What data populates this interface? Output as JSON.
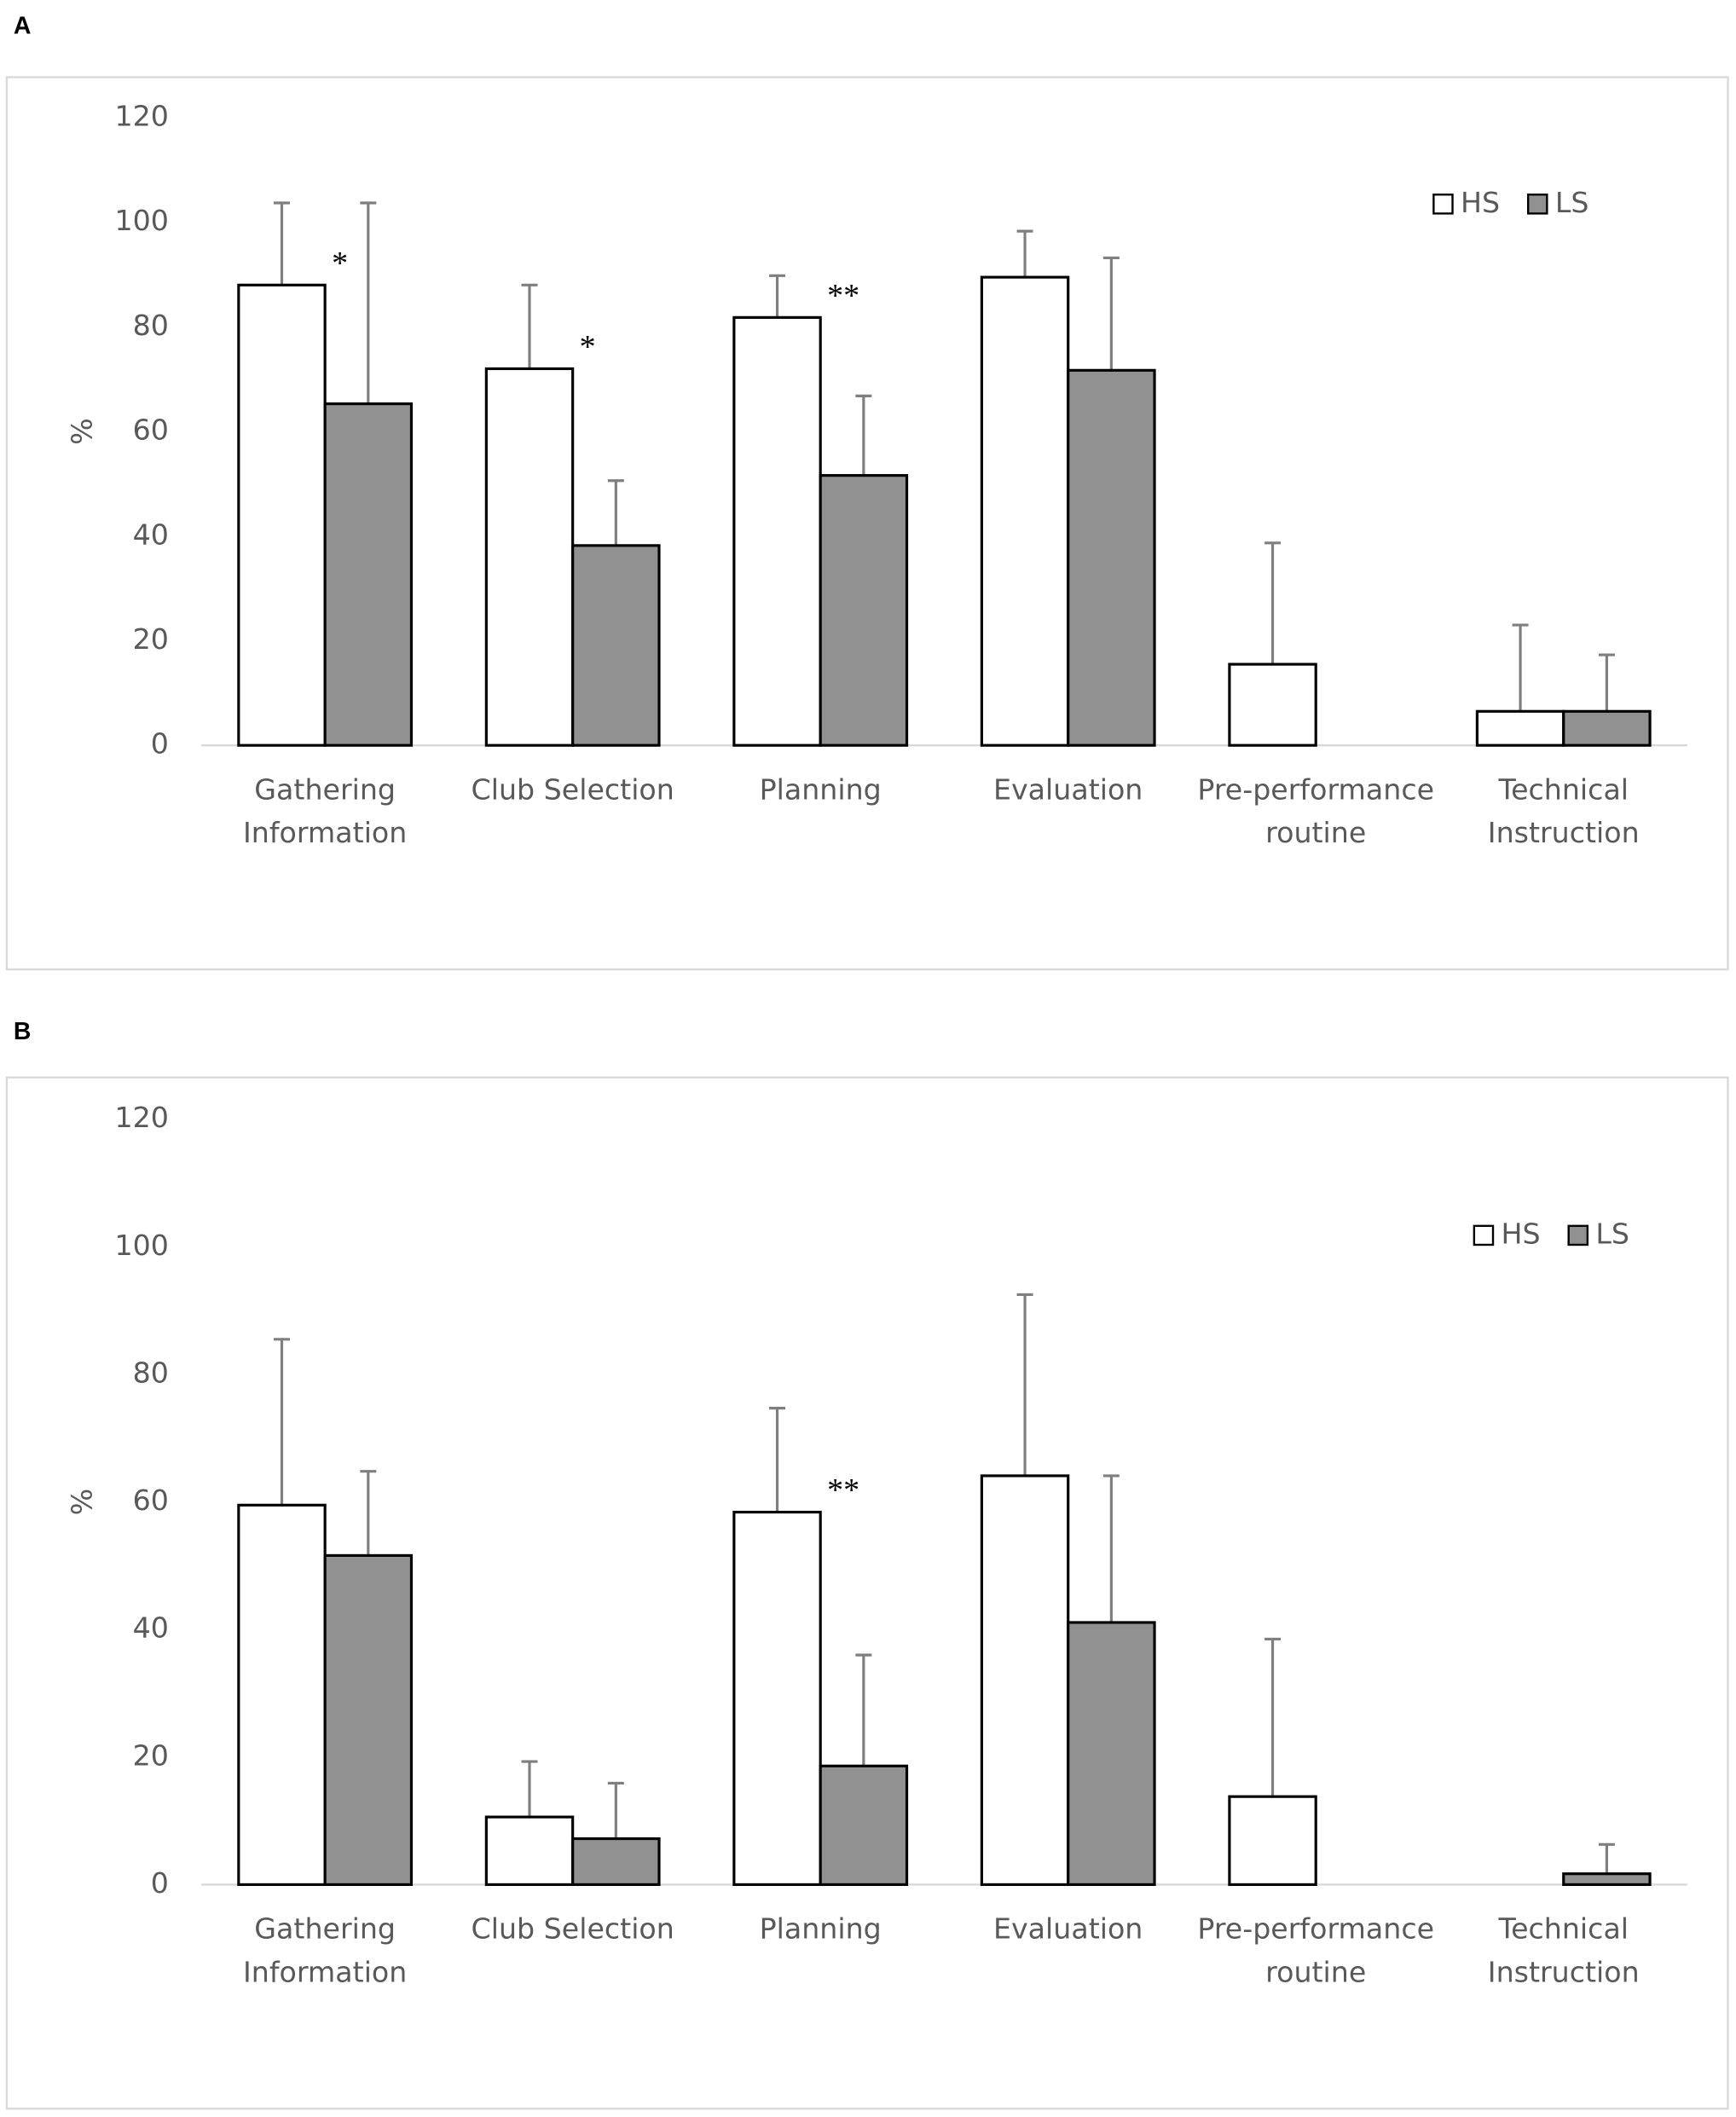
{
  "chart_data": [
    {
      "type": "bar",
      "panel": "A",
      "ylabel": "%",
      "ylim": [
        0,
        120
      ],
      "yticks": [
        0,
        20,
        40,
        60,
        80,
        100,
        120
      ],
      "grid": false,
      "legend": "upper right",
      "categories": [
        [
          "Gathering",
          "Information"
        ],
        [
          "Club Selection"
        ],
        [
          "Planning"
        ],
        [
          "Evaluation"
        ],
        [
          "Pre-performance",
          "routine"
        ],
        [
          "Technical",
          "Instruction"
        ]
      ],
      "series": [
        {
          "name": "HS",
          "color": "#ffffff",
          "values": [
            88.0,
            72.0,
            81.8,
            89.5,
            15.5,
            6.5
          ],
          "errors": [
            15.7,
            16.0,
            8.0,
            8.8,
            23.2,
            16.5
          ]
        },
        {
          "name": "LS",
          "color": "#919191",
          "values": [
            65.3,
            38.2,
            51.6,
            71.7,
            0,
            6.5
          ],
          "errors": [
            38.4,
            12.4,
            15.2,
            21.5,
            null,
            10.8
          ]
        }
      ],
      "annotations": [
        "*",
        "*",
        "**",
        null,
        null,
        null
      ]
    },
    {
      "type": "bar",
      "panel": "B",
      "ylabel": "%",
      "ylim": [
        0,
        120
      ],
      "yticks": [
        0,
        20,
        40,
        60,
        80,
        100,
        120
      ],
      "grid": false,
      "legend": "upper right",
      "categories": [
        [
          "Gathering",
          "Information"
        ],
        [
          "Club Selection"
        ],
        [
          "Planning"
        ],
        [
          "Evaluation"
        ],
        [
          "Pre-performance",
          "routine"
        ],
        [
          "Technical",
          "Instruction"
        ]
      ],
      "series": [
        {
          "name": "HS",
          "color": "#ffffff",
          "values": [
            59.5,
            10.6,
            58.4,
            64.1,
            13.8,
            0
          ],
          "errors": [
            26.0,
            8.7,
            16.3,
            28.4,
            24.7,
            null
          ]
        },
        {
          "name": "LS",
          "color": "#919191",
          "values": [
            51.6,
            7.2,
            18.6,
            41.1,
            0,
            1.7
          ],
          "errors": [
            13.2,
            8.7,
            17.4,
            23.0,
            null,
            4.6
          ]
        }
      ],
      "annotations": [
        null,
        null,
        "**",
        null,
        null,
        null
      ]
    }
  ]
}
